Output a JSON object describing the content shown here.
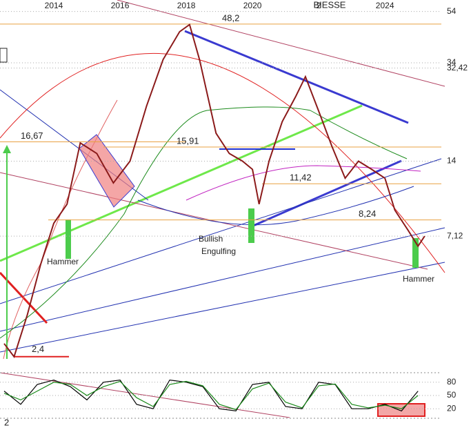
{
  "chart_data": [
    {
      "type": "line",
      "title": "BIESSE",
      "log_scale": true,
      "x": [
        2012.5,
        2012.8,
        2013.2,
        2013.6,
        2014.0,
        2014.4,
        2014.8,
        2015.3,
        2015.8,
        2016.3,
        2016.8,
        2017.3,
        2017.8,
        2018.1,
        2018.4,
        2018.9,
        2019.3,
        2019.7,
        2020.0,
        2020.2,
        2020.5,
        2020.9,
        2021.3,
        2021.6,
        2022.0,
        2022.4,
        2022.8,
        2023.2,
        2023.6,
        2024.0,
        2024.3,
        2024.7,
        2025.0,
        2025.2
      ],
      "series": [
        {
          "color": "#8b1a1a",
          "values": [
            2.7,
            2.4,
            3.5,
            5.5,
            8,
            9.5,
            16.5,
            15,
            11.5,
            14,
            23,
            35,
            45,
            48,
            35,
            18,
            15,
            14,
            13,
            9.5,
            14,
            20,
            25,
            30,
            22,
            16,
            12,
            14,
            13,
            12,
            9,
            7.5,
            6.5,
            7.12
          ]
        }
      ],
      "xlim": [
        2012.375,
        2026.6
      ],
      "xticks": [
        2014,
        2016,
        2018,
        2020,
        {
          "value": 2022,
          "label": "2"
        },
        2024
      ],
      "ylim": [
        2.21,
        59.9
      ],
      "yticks": [
        54,
        34,
        {
          "value": 32.42,
          "label": "32,42"
        },
        14,
        {
          "value": 7.12,
          "label": "7,12"
        }
      ],
      "levels": [
        48.2,
        16.67,
        15.91,
        11.42,
        8.24,
        2.4
      ],
      "level_labels": [
        "48,2",
        "16,67",
        "15,91",
        "11,42",
        "8,24",
        "2,4"
      ],
      "annotations": [
        "Hammer",
        "Bullish",
        "Engulfing",
        "Hammer"
      ],
      "grid": true
    },
    {
      "type": "line",
      "subtitle": "2",
      "x": [
        2012.5,
        2013.0,
        2013.5,
        2014.0,
        2014.5,
        2015.0,
        2015.5,
        2016.0,
        2016.5,
        2017.0,
        2017.5,
        2018.0,
        2018.5,
        2019.0,
        2019.5,
        2020.0,
        2020.5,
        2021.0,
        2021.5,
        2022.0,
        2022.5,
        2023.0,
        2023.5,
        2024.0,
        2024.5,
        2025.0
      ],
      "series": [
        {
          "color": "#000000",
          "values": [
            60,
            30,
            75,
            85,
            70,
            40,
            80,
            85,
            30,
            20,
            85,
            80,
            70,
            20,
            15,
            75,
            80,
            25,
            20,
            80,
            75,
            20,
            20,
            30,
            15,
            60
          ]
        },
        {
          "color": "#1a8a1a",
          "values": [
            55,
            40,
            60,
            80,
            75,
            50,
            70,
            82,
            45,
            25,
            75,
            82,
            72,
            30,
            18,
            65,
            78,
            35,
            22,
            72,
            76,
            30,
            22,
            28,
            20,
            50
          ]
        }
      ],
      "xlim": [
        2012.375,
        2026.6
      ],
      "ylim": [
        0,
        100
      ],
      "yticks": [
        20,
        50,
        80
      ],
      "grid": true
    }
  ]
}
